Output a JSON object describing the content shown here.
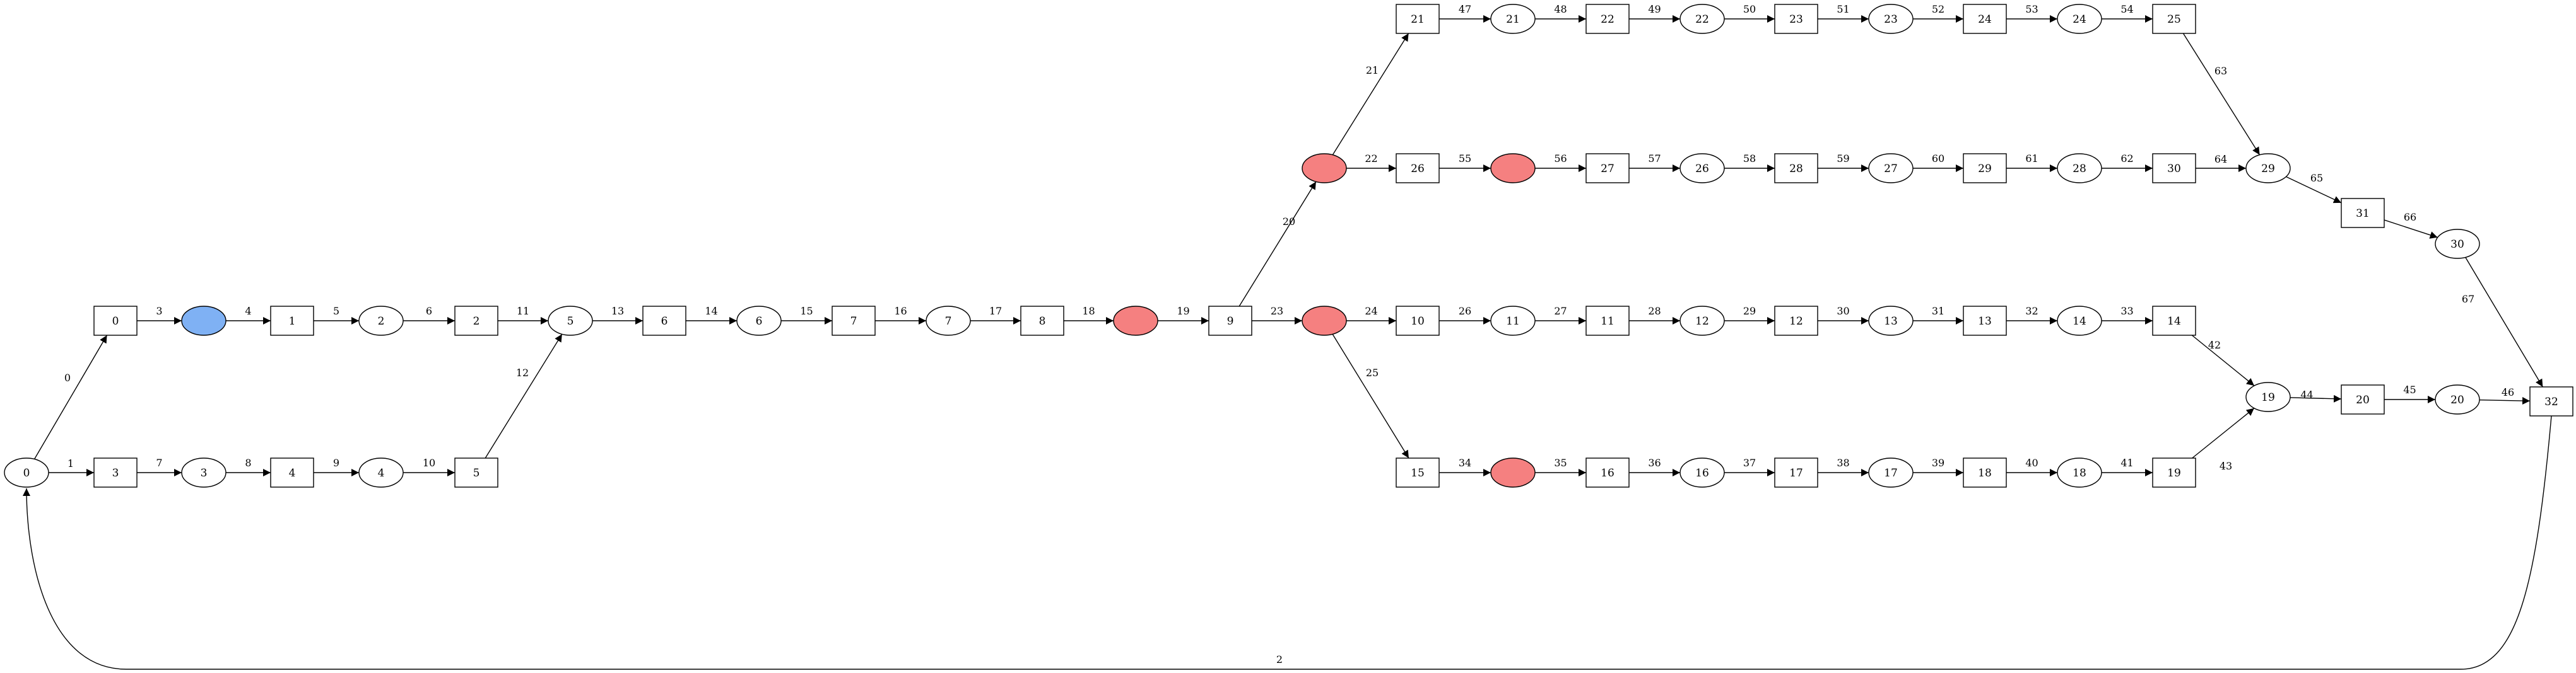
{
  "diagram": {
    "places": [
      {
        "id": "p0",
        "label": "0"
      },
      {
        "id": "pb",
        "label": "",
        "fill": "#7fb1f4"
      },
      {
        "id": "p2",
        "label": "2"
      },
      {
        "id": "p3",
        "label": "3"
      },
      {
        "id": "p4",
        "label": "4"
      },
      {
        "id": "p5",
        "label": "5"
      },
      {
        "id": "p6",
        "label": "6"
      },
      {
        "id": "p7",
        "label": "7"
      },
      {
        "id": "pr8",
        "label": "",
        "fill": "#f58080"
      },
      {
        "id": "pr9a",
        "label": "",
        "fill": "#f58080"
      },
      {
        "id": "pr9b",
        "label": "",
        "fill": "#f58080"
      },
      {
        "id": "p21",
        "label": "21"
      },
      {
        "id": "p22",
        "label": "22"
      },
      {
        "id": "p23",
        "label": "23"
      },
      {
        "id": "p24",
        "label": "24"
      },
      {
        "id": "pr26",
        "label": "",
        "fill": "#f58080"
      },
      {
        "id": "p26",
        "label": "26"
      },
      {
        "id": "p27",
        "label": "27"
      },
      {
        "id": "p28",
        "label": "28"
      },
      {
        "id": "p29",
        "label": "29"
      },
      {
        "id": "p30",
        "label": "30"
      },
      {
        "id": "p11",
        "label": "11"
      },
      {
        "id": "p12",
        "label": "12"
      },
      {
        "id": "p13",
        "label": "13"
      },
      {
        "id": "p14",
        "label": "14"
      },
      {
        "id": "pr15",
        "label": "",
        "fill": "#f58080"
      },
      {
        "id": "p16",
        "label": "16"
      },
      {
        "id": "p17",
        "label": "17"
      },
      {
        "id": "p18",
        "label": "18"
      },
      {
        "id": "p19",
        "label": "19"
      },
      {
        "id": "p20",
        "label": "20"
      }
    ],
    "transitions": [
      {
        "id": "t0",
        "label": "0"
      },
      {
        "id": "t1",
        "label": "1"
      },
      {
        "id": "t2",
        "label": "2"
      },
      {
        "id": "t3",
        "label": "3"
      },
      {
        "id": "t4",
        "label": "4"
      },
      {
        "id": "t5",
        "label": "5"
      },
      {
        "id": "t6",
        "label": "6"
      },
      {
        "id": "t7",
        "label": "7"
      },
      {
        "id": "t8",
        "label": "8"
      },
      {
        "id": "t9",
        "label": "9"
      },
      {
        "id": "t21",
        "label": "21"
      },
      {
        "id": "t22",
        "label": "22"
      },
      {
        "id": "t23",
        "label": "23"
      },
      {
        "id": "t24",
        "label": "24"
      },
      {
        "id": "t25",
        "label": "25"
      },
      {
        "id": "t26",
        "label": "26"
      },
      {
        "id": "t27",
        "label": "27"
      },
      {
        "id": "t28",
        "label": "28"
      },
      {
        "id": "t29",
        "label": "29"
      },
      {
        "id": "t30",
        "label": "30"
      },
      {
        "id": "t31",
        "label": "31"
      },
      {
        "id": "t10",
        "label": "10"
      },
      {
        "id": "t11",
        "label": "11"
      },
      {
        "id": "t12",
        "label": "12"
      },
      {
        "id": "t13",
        "label": "13"
      },
      {
        "id": "t14",
        "label": "14"
      },
      {
        "id": "t15",
        "label": "15"
      },
      {
        "id": "t16",
        "label": "16"
      },
      {
        "id": "t17",
        "label": "17"
      },
      {
        "id": "t18",
        "label": "18"
      },
      {
        "id": "t19",
        "label": "19"
      },
      {
        "id": "t20",
        "label": "20"
      },
      {
        "id": "t32",
        "label": "32"
      }
    ],
    "arcs": [
      {
        "label": "0",
        "from": "p0",
        "to": "t0"
      },
      {
        "label": "1",
        "from": "p0",
        "to": "t3"
      },
      {
        "label": "2",
        "from": "t32",
        "to": "p0"
      },
      {
        "label": "3",
        "from": "t0",
        "to": "pb"
      },
      {
        "label": "4",
        "from": "pb",
        "to": "t1"
      },
      {
        "label": "5",
        "from": "t1",
        "to": "p2"
      },
      {
        "label": "6",
        "from": "p2",
        "to": "t2"
      },
      {
        "label": "7",
        "from": "t3",
        "to": "p3"
      },
      {
        "label": "8",
        "from": "p3",
        "to": "t4"
      },
      {
        "label": "9",
        "from": "t4",
        "to": "p4"
      },
      {
        "label": "10",
        "from": "p4",
        "to": "t5"
      },
      {
        "label": "11",
        "from": "t2",
        "to": "p5"
      },
      {
        "label": "12",
        "from": "t5",
        "to": "p5"
      },
      {
        "label": "13",
        "from": "p5",
        "to": "t6"
      },
      {
        "label": "14",
        "from": "t6",
        "to": "p6"
      },
      {
        "label": "15",
        "from": "p6",
        "to": "t7"
      },
      {
        "label": "16",
        "from": "t7",
        "to": "p7"
      },
      {
        "label": "17",
        "from": "p7",
        "to": "t8"
      },
      {
        "label": "18",
        "from": "t8",
        "to": "pr8"
      },
      {
        "label": "19",
        "from": "pr8",
        "to": "t9"
      },
      {
        "label": "20",
        "from": "t9",
        "to": "pr9a"
      },
      {
        "label": "21",
        "from": "pr9a",
        "to": "t21"
      },
      {
        "label": "22",
        "from": "pr9a",
        "to": "t26"
      },
      {
        "label": "23",
        "from": "t9",
        "to": "pr9b"
      },
      {
        "label": "24",
        "from": "pr9b",
        "to": "t10"
      },
      {
        "label": "25",
        "from": "pr9b",
        "to": "t15"
      },
      {
        "label": "26",
        "from": "t10",
        "to": "p11"
      },
      {
        "label": "27",
        "from": "p11",
        "to": "t11"
      },
      {
        "label": "28",
        "from": "t11",
        "to": "p12"
      },
      {
        "label": "29",
        "from": "p12",
        "to": "t12"
      },
      {
        "label": "30",
        "from": "t12",
        "to": "p13"
      },
      {
        "label": "31",
        "from": "p13",
        "to": "t13"
      },
      {
        "label": "32",
        "from": "t13",
        "to": "p14"
      },
      {
        "label": "33",
        "from": "p14",
        "to": "t14"
      },
      {
        "label": "34",
        "from": "t15",
        "to": "pr15"
      },
      {
        "label": "35",
        "from": "pr15",
        "to": "t16"
      },
      {
        "label": "36",
        "from": "t16",
        "to": "p16"
      },
      {
        "label": "37",
        "from": "p16",
        "to": "t17"
      },
      {
        "label": "38",
        "from": "t17",
        "to": "p17"
      },
      {
        "label": "39",
        "from": "p17",
        "to": "t18"
      },
      {
        "label": "40",
        "from": "t18",
        "to": "p18"
      },
      {
        "label": "41",
        "from": "p18",
        "to": "t19"
      },
      {
        "label": "42",
        "from": "t14",
        "to": "p19"
      },
      {
        "label": "43",
        "from": "t19",
        "to": "p19"
      },
      {
        "label": "44",
        "from": "p19",
        "to": "t20"
      },
      {
        "label": "45",
        "from": "t20",
        "to": "p20"
      },
      {
        "label": "46",
        "from": "p20",
        "to": "t32"
      },
      {
        "label": "47",
        "from": "t21",
        "to": "p21"
      },
      {
        "label": "48",
        "from": "p21",
        "to": "t22"
      },
      {
        "label": "49",
        "from": "t22",
        "to": "p22"
      },
      {
        "label": "50",
        "from": "p22",
        "to": "t23"
      },
      {
        "label": "51",
        "from": "t23",
        "to": "p23"
      },
      {
        "label": "52",
        "from": "p23",
        "to": "t24"
      },
      {
        "label": "53",
        "from": "t24",
        "to": "p24"
      },
      {
        "label": "54",
        "from": "p24",
        "to": "t25"
      },
      {
        "label": "55",
        "from": "t26",
        "to": "pr26"
      },
      {
        "label": "56",
        "from": "pr26",
        "to": "t27"
      },
      {
        "label": "57",
        "from": "t27",
        "to": "p26"
      },
      {
        "label": "58",
        "from": "p26",
        "to": "t28"
      },
      {
        "label": "59",
        "from": "t28",
        "to": "p27"
      },
      {
        "label": "60",
        "from": "p27",
        "to": "t29"
      },
      {
        "label": "61",
        "from": "t29",
        "to": "p28"
      },
      {
        "label": "62",
        "from": "p28",
        "to": "t30"
      },
      {
        "label": "63",
        "from": "t25",
        "to": "p29"
      },
      {
        "label": "64",
        "from": "t30",
        "to": "p29"
      },
      {
        "label": "65",
        "from": "p29",
        "to": "t31"
      },
      {
        "label": "66",
        "from": "t31",
        "to": "p30"
      },
      {
        "label": "67",
        "from": "p30",
        "to": "t32"
      }
    ]
  }
}
